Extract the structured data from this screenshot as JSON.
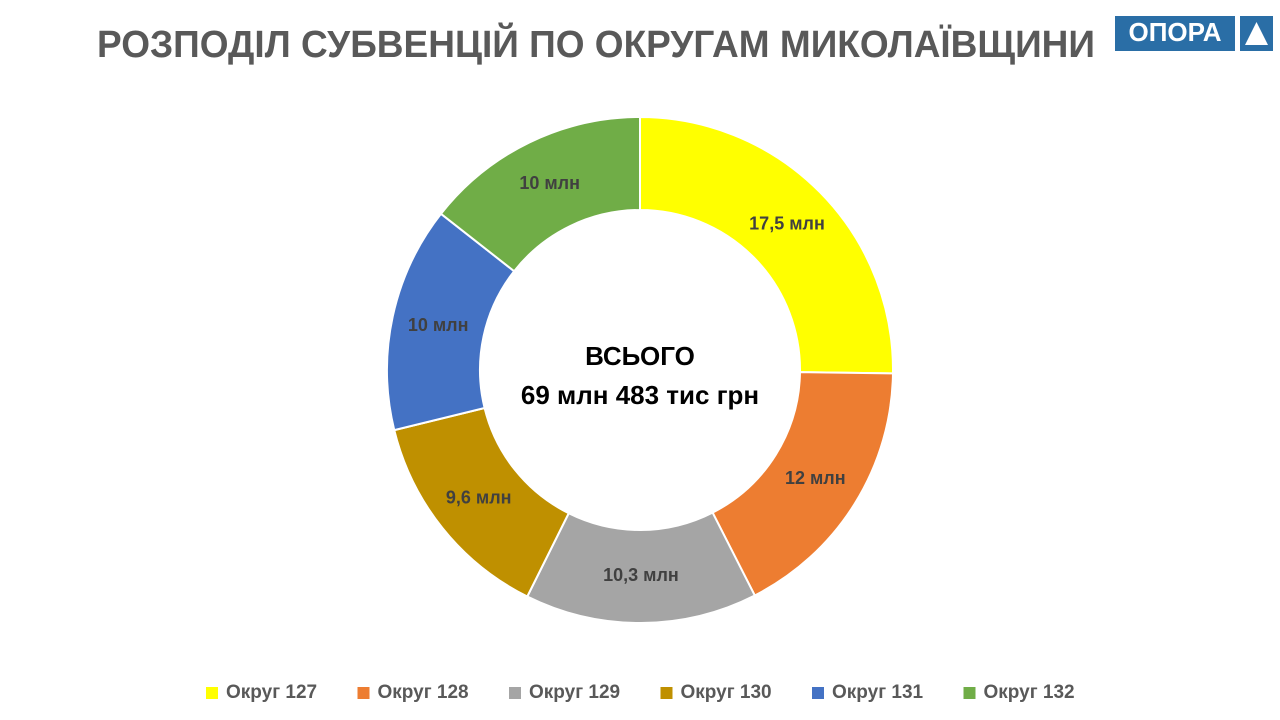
{
  "logo": "ОПОРА",
  "chart_data": {
    "type": "donut",
    "title": "РОЗПОДІЛ СУБВЕНЦІЙ ПО ОКРУГАМ МИКОЛАЇВЩИНИ",
    "annotations": [
      "ВСЬОГО",
      "69 млн 483 тис грн"
    ],
    "categories": [
      "Округ 127",
      "Округ 128",
      "Округ 129",
      "Округ 130",
      "Округ 131",
      "Округ 132"
    ],
    "values": [
      17.5,
      12,
      10.3,
      9.6,
      10,
      10
    ],
    "value_labels": [
      "17,5 млн",
      "12 млн",
      "10,3 млн",
      "9,6 млн",
      "10 млн",
      "10 млн"
    ],
    "colors": [
      "#ffff00",
      "#ed7d31",
      "#a5a5a5",
      "#bf9000",
      "#4472c4",
      "#70ad47"
    ],
    "legend": "bottom"
  }
}
